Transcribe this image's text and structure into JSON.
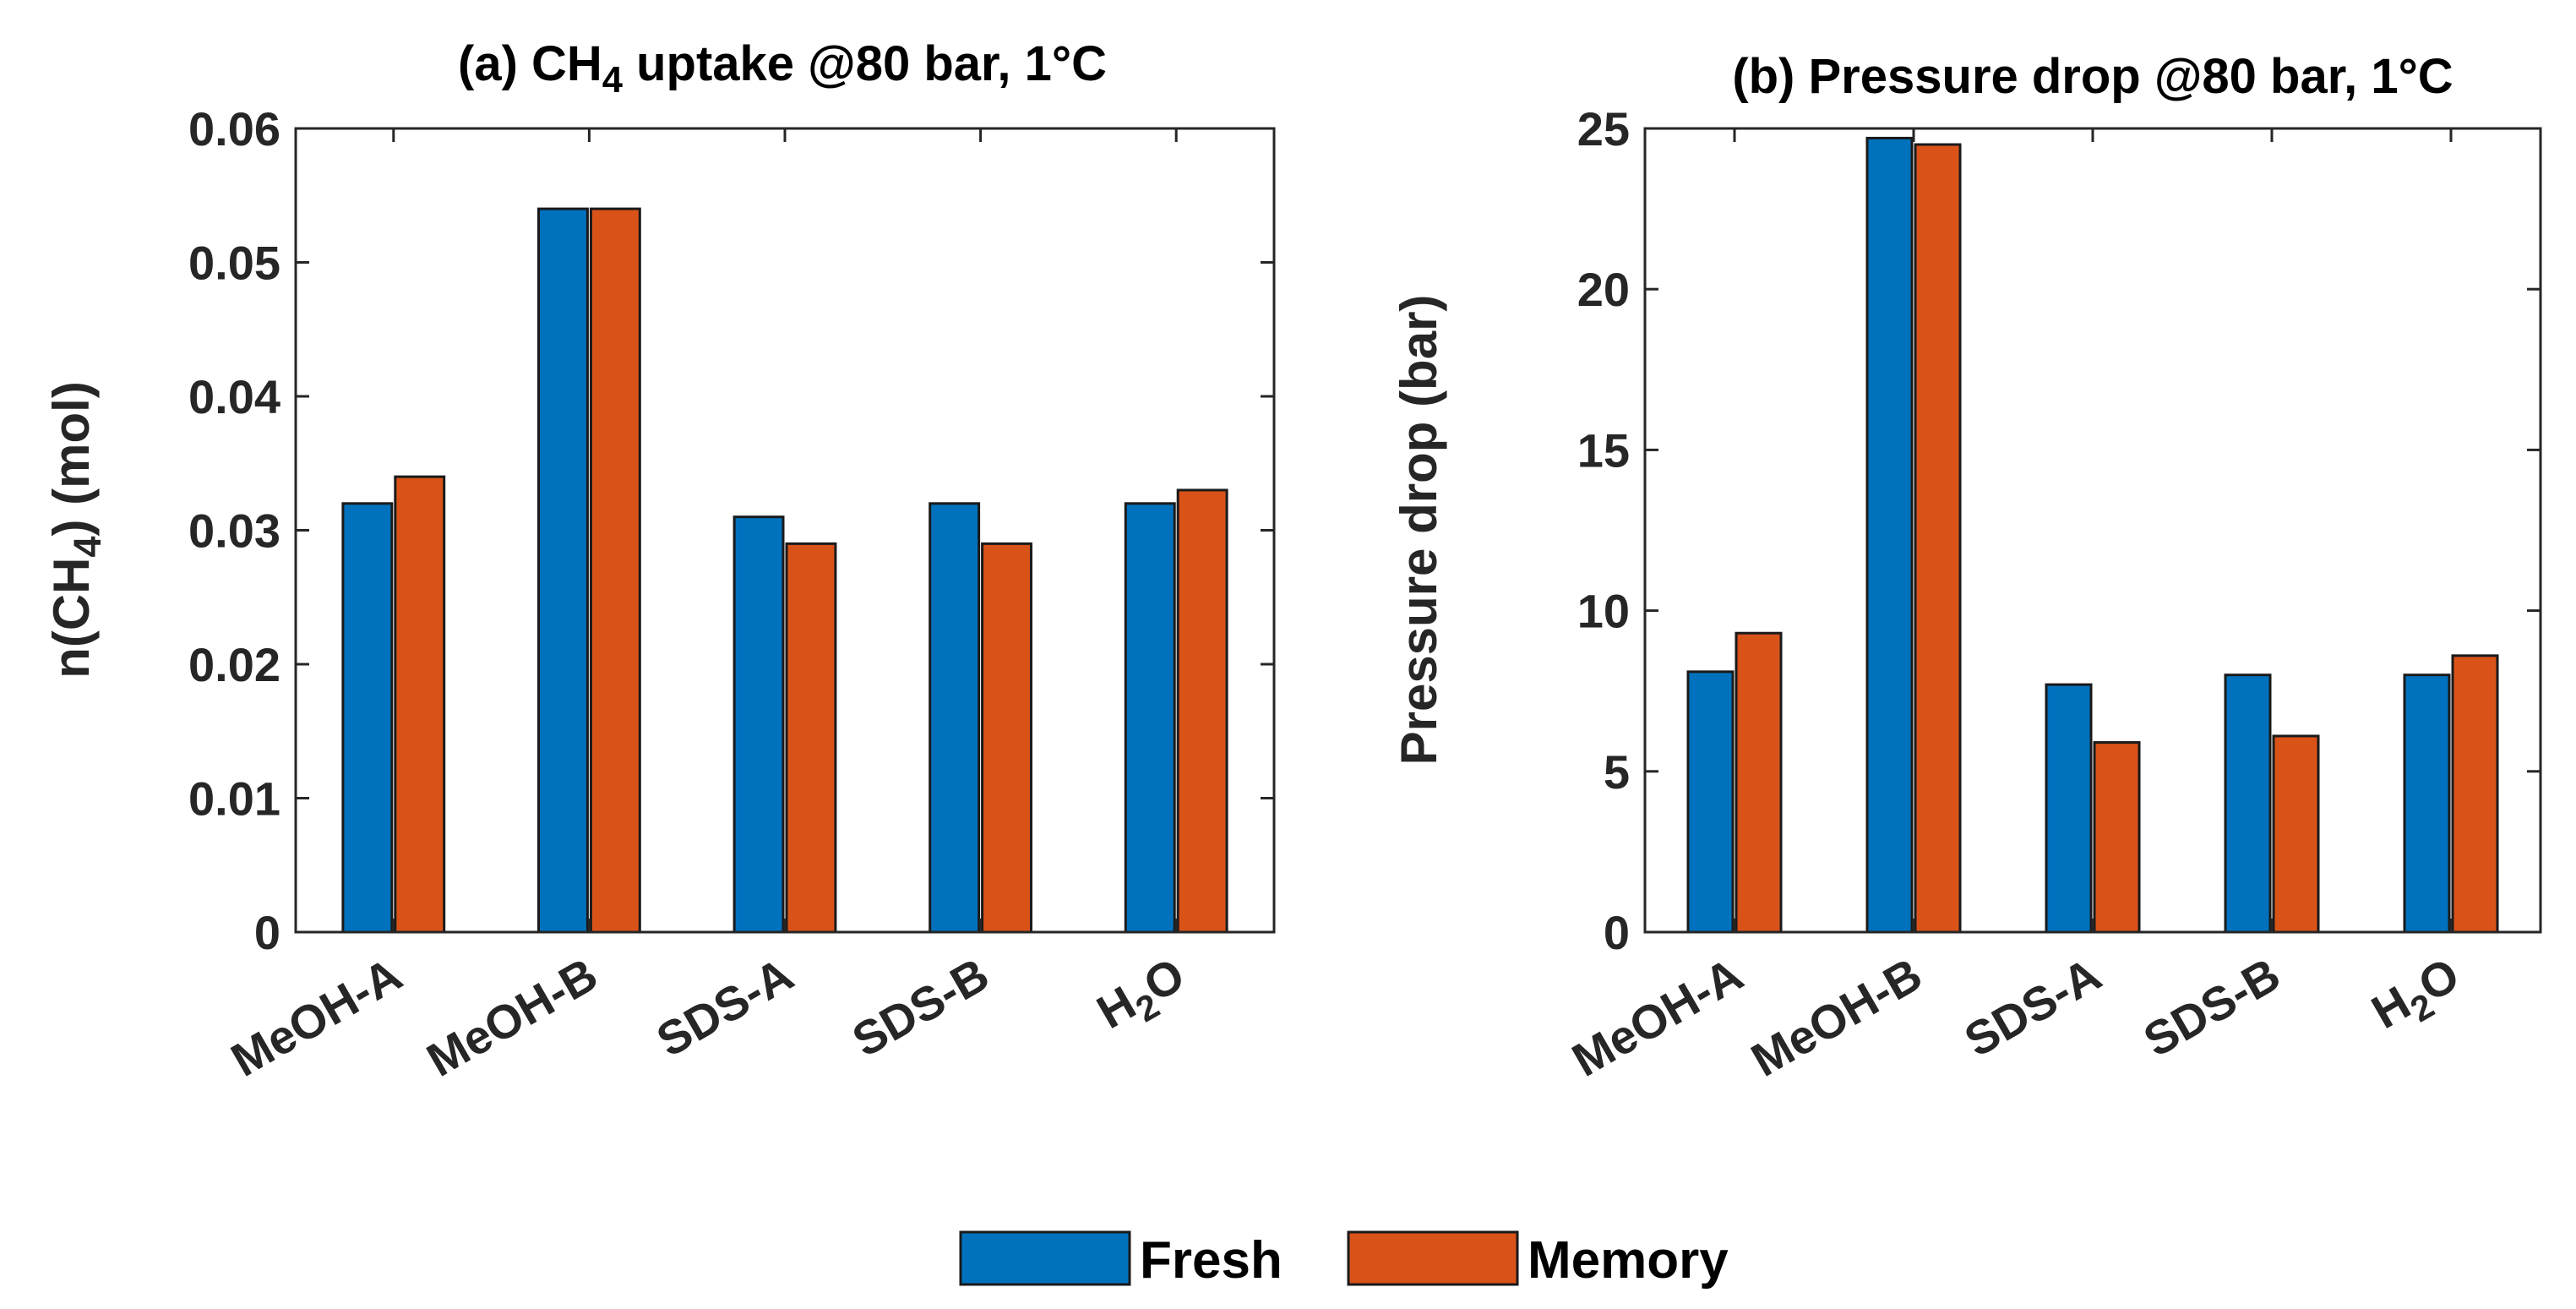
{
  "chart_data": [
    {
      "id": "a",
      "type": "bar",
      "title": "(a) CH4 uptake @80 bar, 1°C",
      "title_parts": {
        "prefix": "(a) CH",
        "sub": "4",
        "suffix": " uptake @80 bar, 1°C"
      },
      "ylabel": "n(CH4) (mol)",
      "ylabel_parts": {
        "prefix": "n(CH",
        "sub": "4",
        "suffix": ") (mol)"
      },
      "xlabel": "",
      "ylim": [
        0,
        0.06
      ],
      "yticks": [
        0,
        0.01,
        0.02,
        0.03,
        0.04,
        0.05,
        0.06
      ],
      "ytick_labels": [
        "0",
        "0.01",
        "0.02",
        "0.03",
        "0.04",
        "0.05",
        "0.06"
      ],
      "categories": [
        "MeOH-A",
        "MeOH-B",
        "SDS-A",
        "SDS-B",
        "H2O"
      ],
      "category_labels": [
        {
          "prefix": "MeOH-A",
          "sub": "",
          "suffix": ""
        },
        {
          "prefix": "MeOH-B",
          "sub": "",
          "suffix": ""
        },
        {
          "prefix": "SDS-A",
          "sub": "",
          "suffix": ""
        },
        {
          "prefix": "SDS-B",
          "sub": "",
          "suffix": ""
        },
        {
          "prefix": "H",
          "sub": "2",
          "suffix": "O"
        }
      ],
      "series": [
        {
          "name": "Fresh",
          "values": [
            0.032,
            0.054,
            0.031,
            0.032,
            0.032
          ]
        },
        {
          "name": "Memory",
          "values": [
            0.034,
            0.054,
            0.029,
            0.029,
            0.033
          ]
        }
      ]
    },
    {
      "id": "b",
      "type": "bar",
      "title": "(b) Pressure drop @80 bar, 1°C",
      "title_parts": {
        "prefix": "(b) Pressure drop @80 bar, 1°C",
        "sub": "",
        "suffix": ""
      },
      "ylabel": "Pressure drop (bar)",
      "ylabel_parts": {
        "prefix": "Pressure drop (bar)",
        "sub": "",
        "suffix": ""
      },
      "xlabel": "",
      "ylim": [
        0,
        25
      ],
      "yticks": [
        0,
        5,
        10,
        15,
        20,
        25
      ],
      "ytick_labels": [
        "0",
        "5",
        "10",
        "15",
        "20",
        "25"
      ],
      "categories": [
        "MeOH-A",
        "MeOH-B",
        "SDS-A",
        "SDS-B",
        "H2O"
      ],
      "category_labels": [
        {
          "prefix": "MeOH-A",
          "sub": "",
          "suffix": ""
        },
        {
          "prefix": "MeOH-B",
          "sub": "",
          "suffix": ""
        },
        {
          "prefix": "SDS-A",
          "sub": "",
          "suffix": ""
        },
        {
          "prefix": "SDS-B",
          "sub": "",
          "suffix": ""
        },
        {
          "prefix": "H",
          "sub": "2",
          "suffix": "O"
        }
      ],
      "series": [
        {
          "name": "Fresh",
          "values": [
            8.1,
            24.7,
            7.7,
            8.0,
            8.0
          ]
        },
        {
          "name": "Memory",
          "values": [
            9.3,
            24.5,
            5.9,
            6.1,
            8.6
          ]
        }
      ]
    }
  ],
  "legend": {
    "placement": "bottom-center",
    "entries": [
      {
        "name": "Fresh",
        "color": "#0072BD"
      },
      {
        "name": "Memory",
        "color": "#D95319"
      }
    ]
  },
  "colors": {
    "Fresh": "#0072BD",
    "Memory": "#D95319"
  }
}
